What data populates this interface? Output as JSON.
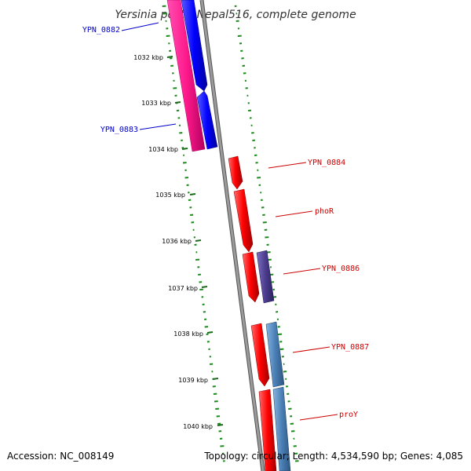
{
  "title": "Yersinia pestis Nepal516, complete genome",
  "footer": {
    "accession": "Accession: NC_008149",
    "topology": "Topology: circular; Length: 4,534,590 bp; Genes: 4,085"
  },
  "ticks": [
    "1032 kbp",
    "1033 kbp",
    "1034 kbp",
    "1035 kbp",
    "1036 kbp",
    "1037 kbp",
    "1038 kbp",
    "1039 kbp",
    "1040 kbp"
  ],
  "genes": [
    {
      "label": "YPN_0882",
      "color": "#0000cc"
    },
    {
      "label": "YPN_0883",
      "color": "#0000cc"
    },
    {
      "label": "YPN_0884",
      "color": "#cc0000"
    },
    {
      "label": "phoR",
      "color": "#cc0000"
    },
    {
      "label": "YPN_0886",
      "color": "#cc0000"
    },
    {
      "label": "YPN_0887",
      "color": "#cc0000"
    },
    {
      "label": "proY",
      "color": "#cc0000"
    }
  ],
  "colors": {
    "backbone": "#888888",
    "gc_ticks": "#1a8a1a",
    "cds_reverse": "#ff1a8c",
    "cds_blue": "#0000ff",
    "cds_red": "#ff0000",
    "cds_purple": "#4b3c8e",
    "cds_steel": "#4a7fb5"
  }
}
